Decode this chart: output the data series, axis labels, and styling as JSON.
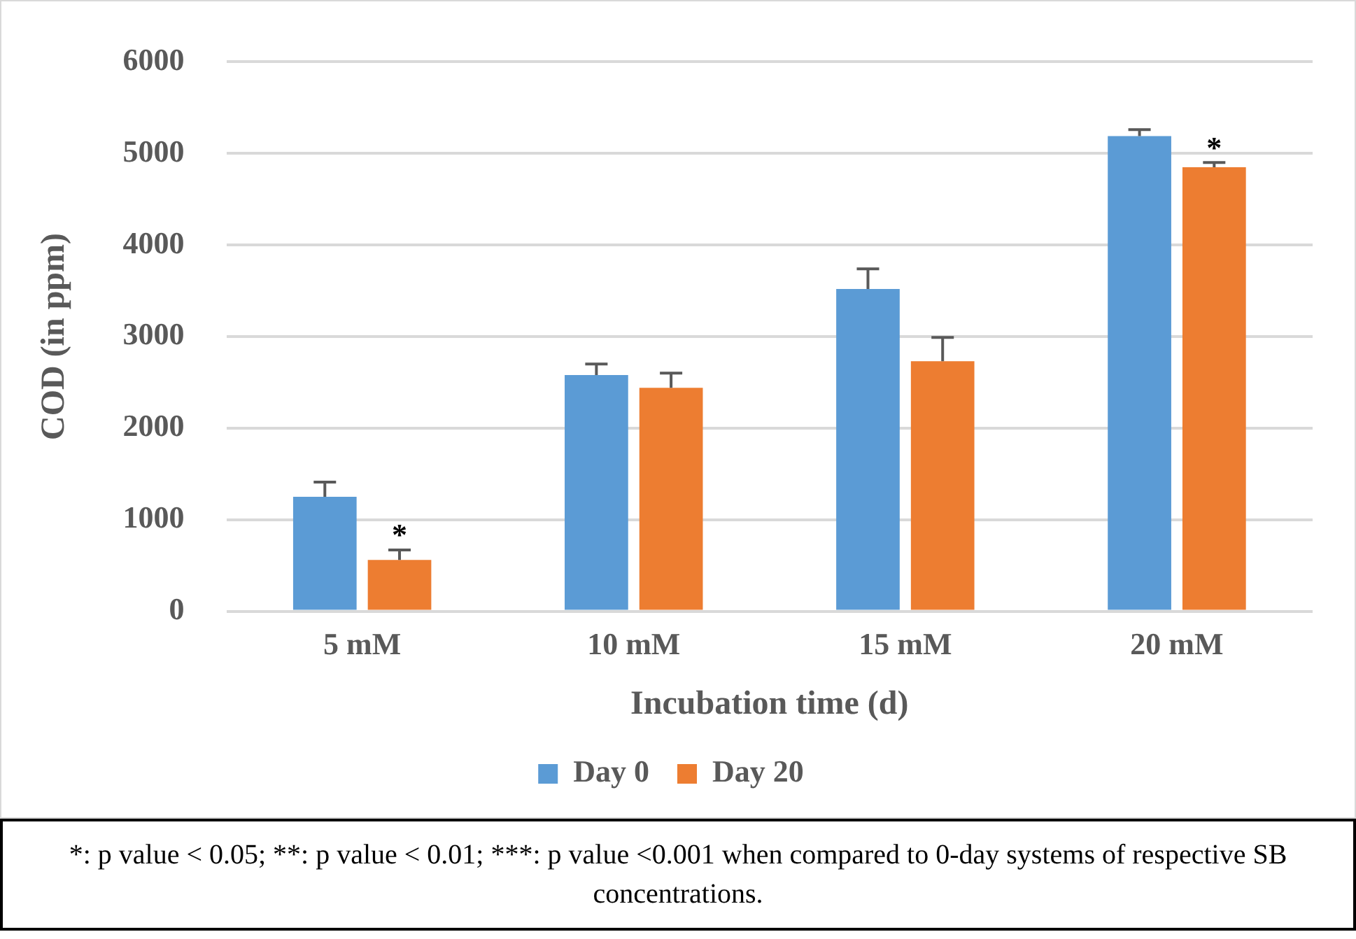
{
  "chart_data": {
    "type": "bar",
    "xlabel": "Incubation time (d)",
    "ylabel": "COD (in ppm)",
    "categories": [
      "5 mM",
      "10 mM",
      "15 mM",
      "20 mM"
    ],
    "series": [
      {
        "name": "Day 0",
        "color": "#5b9bd5",
        "values": [
          1250,
          2580,
          3520,
          5190
        ],
        "errors": [
          [
            1250,
            1410
          ],
          [
            2580,
            2700
          ],
          [
            3520,
            3740
          ],
          [
            5190,
            5260
          ]
        ]
      },
      {
        "name": "Day 20",
        "color": "#ed7d31",
        "values": [
          560,
          2440,
          2730,
          4850
        ],
        "errors": [
          [
            560,
            670
          ],
          [
            2440,
            2600
          ],
          [
            2730,
            2990
          ],
          [
            4850,
            4900
          ]
        ]
      }
    ],
    "ylim": [
      0,
      6000
    ],
    "yticks": [
      0,
      1000,
      2000,
      3000,
      4000,
      5000,
      6000
    ],
    "grid": "y",
    "legend": "bottom",
    "annotations": [
      {
        "text": "*",
        "x": "5 mM",
        "y": 670
      },
      {
        "text": "*",
        "x": "20 mM",
        "y": 4900
      },
      "*: p value < 0.05; **: p value < 0.01; ***: p value <0.001 when compared to 0-day systems of respective SB concentrations."
    ]
  }
}
